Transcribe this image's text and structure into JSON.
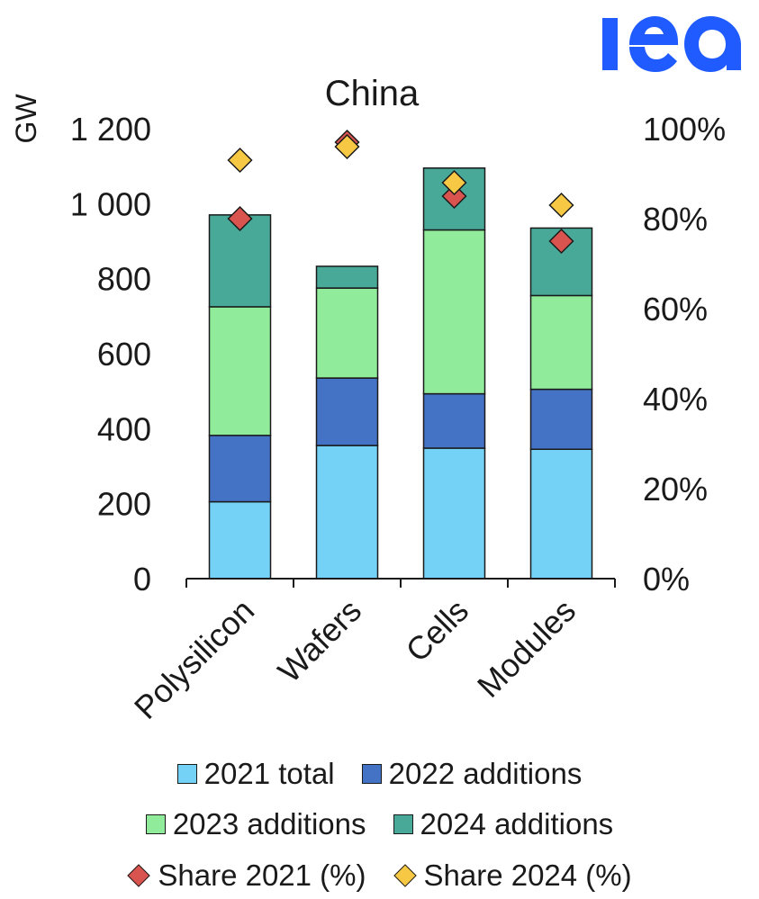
{
  "logo_text": "iea",
  "chart_data": {
    "type": "bar",
    "stacked": true,
    "title": "China",
    "ylabel": "GW",
    "ylim": [
      0,
      1200
    ],
    "yticks": [
      "0",
      "200",
      "400",
      "600",
      "800",
      "1 000",
      "1 200"
    ],
    "y2lim": [
      0,
      100
    ],
    "y2ticks": [
      "0%",
      "20%",
      "40%",
      "60%",
      "80%",
      "100%"
    ],
    "categories": [
      "Polysilicon",
      "Wafers",
      "Cells",
      "Modules"
    ],
    "series": [
      {
        "name": "2021 total",
        "kind": "bar",
        "color": "#74D2F7",
        "values": [
          205,
          355,
          348,
          345
        ]
      },
      {
        "name": "2022 additions",
        "kind": "bar",
        "color": "#4472C4",
        "values": [
          177,
          180,
          145,
          160
        ]
      },
      {
        "name": "2023 additions",
        "kind": "bar",
        "color": "#90EB9B",
        "values": [
          343,
          240,
          437,
          250
        ]
      },
      {
        "name": "2024 additions",
        "kind": "bar",
        "color": "#48A999",
        "values": [
          245,
          58,
          165,
          180
        ]
      },
      {
        "name": "Share 2021 (%)",
        "kind": "marker",
        "axis": "right",
        "color": "#D9534F",
        "values": [
          80,
          97,
          85,
          75
        ]
      },
      {
        "name": "Share 2024 (%)",
        "kind": "marker",
        "axis": "right",
        "color": "#F7C843",
        "values": [
          93,
          96,
          88,
          83
        ]
      }
    ],
    "legend_position": "bottom",
    "grid": false
  }
}
